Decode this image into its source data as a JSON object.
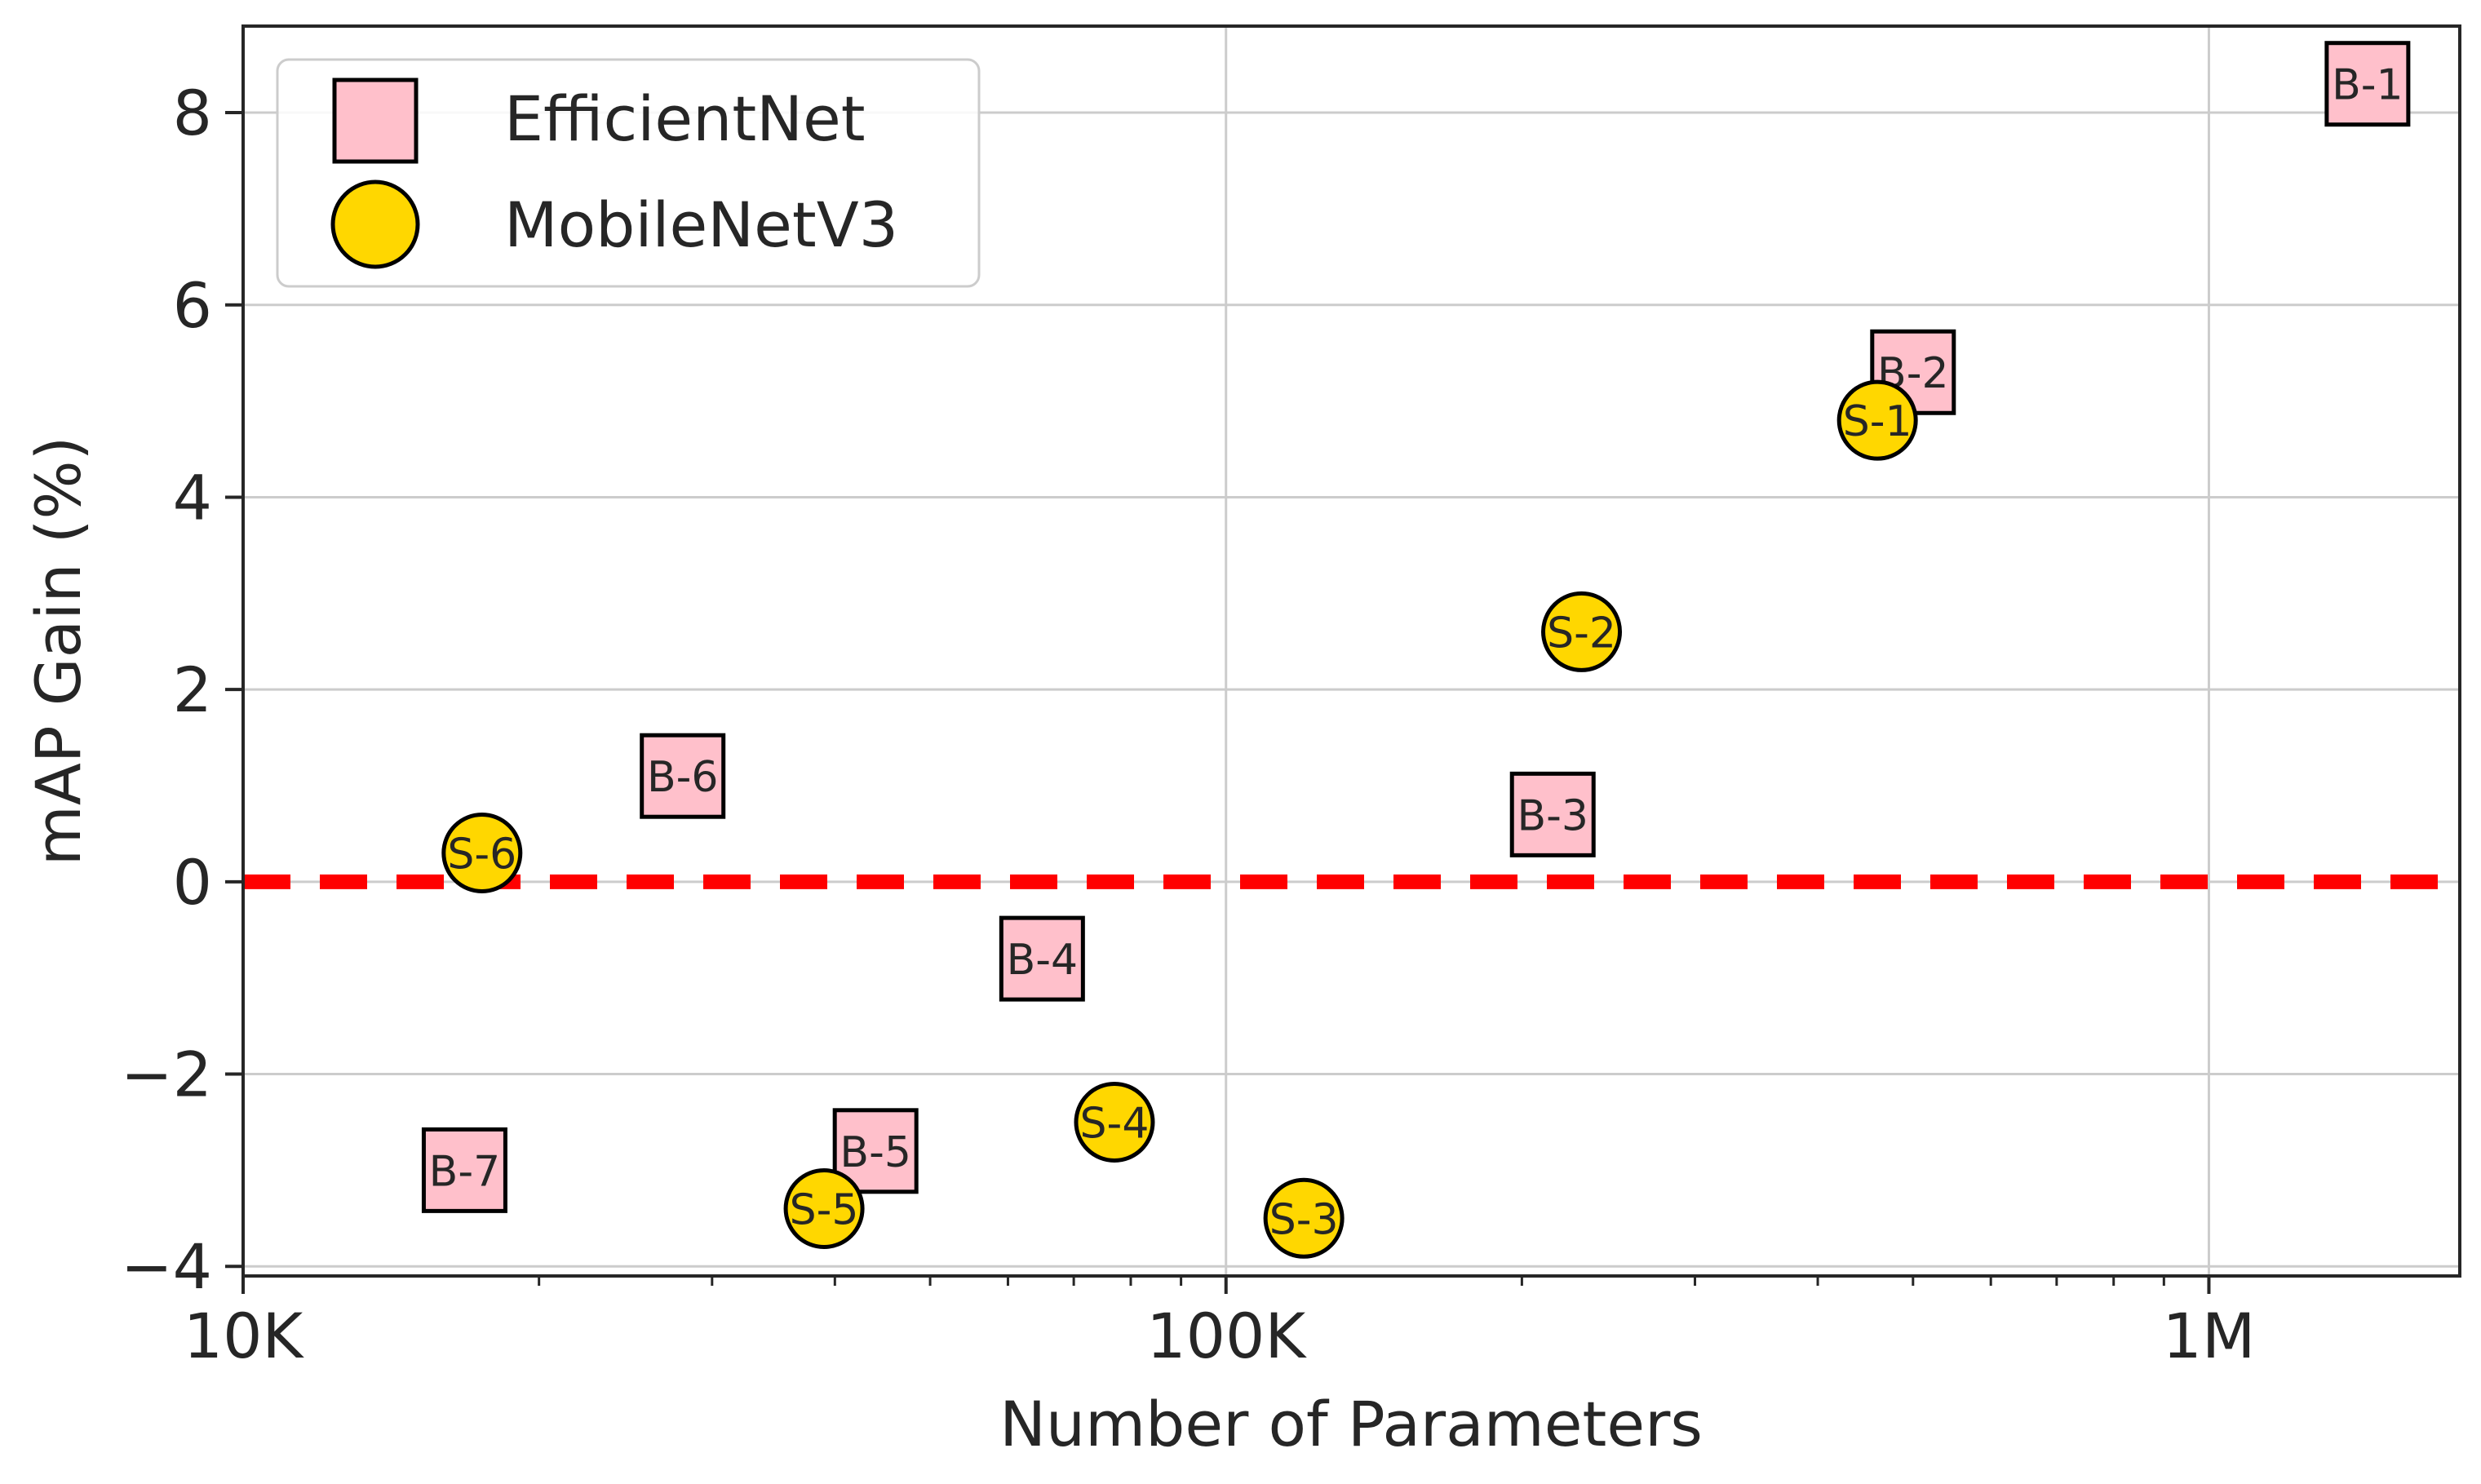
{
  "chart_data": {
    "type": "scatter",
    "title": "",
    "xlabel": "Number of Parameters",
    "ylabel": "mAP Gain (%)",
    "xscale": "log",
    "xlim": [
      10000,
      1800000
    ],
    "ylim": [
      -4.1,
      8.9
    ],
    "grid": true,
    "legend_position": "top-left",
    "x_ticks": [
      {
        "value": 10000,
        "label": "10K"
      },
      {
        "value": 100000,
        "label": "100K"
      },
      {
        "value": 1000000,
        "label": "1M"
      }
    ],
    "y_ticks": [
      {
        "value": -4,
        "label": "−4"
      },
      {
        "value": -2,
        "label": "−2"
      },
      {
        "value": 0,
        "label": "0"
      },
      {
        "value": 2,
        "label": "2"
      },
      {
        "value": 4,
        "label": "4"
      },
      {
        "value": 6,
        "label": "6"
      },
      {
        "value": 8,
        "label": "8"
      }
    ],
    "reference_line": {
      "y": 0,
      "color": "#ff0000",
      "style": "dashed"
    },
    "series": [
      {
        "name": "EfficientNet",
        "marker": "square",
        "color": "#ffc0cb",
        "points": [
          {
            "label": "B-1",
            "x": 1450000,
            "y": 8.3
          },
          {
            "label": "B-2",
            "x": 500000,
            "y": 5.3
          },
          {
            "label": "B-3",
            "x": 215000,
            "y": 0.7
          },
          {
            "label": "B-4",
            "x": 65000,
            "y": -0.8
          },
          {
            "label": "B-5",
            "x": 44000,
            "y": -2.8
          },
          {
            "label": "B-6",
            "x": 28000,
            "y": 1.1
          },
          {
            "label": "B-7",
            "x": 16800,
            "y": -3.0
          }
        ]
      },
      {
        "name": "MobileNetV3",
        "marker": "circle",
        "color": "#ffd700",
        "points": [
          {
            "label": "S-1",
            "x": 460000,
            "y": 4.8
          },
          {
            "label": "S-2",
            "x": 230000,
            "y": 2.6
          },
          {
            "label": "S-3",
            "x": 120000,
            "y": -3.5
          },
          {
            "label": "S-4",
            "x": 77000,
            "y": -2.5
          },
          {
            "label": "S-5",
            "x": 39000,
            "y": -3.4
          },
          {
            "label": "S-6",
            "x": 17500,
            "y": 0.3
          }
        ]
      }
    ]
  }
}
